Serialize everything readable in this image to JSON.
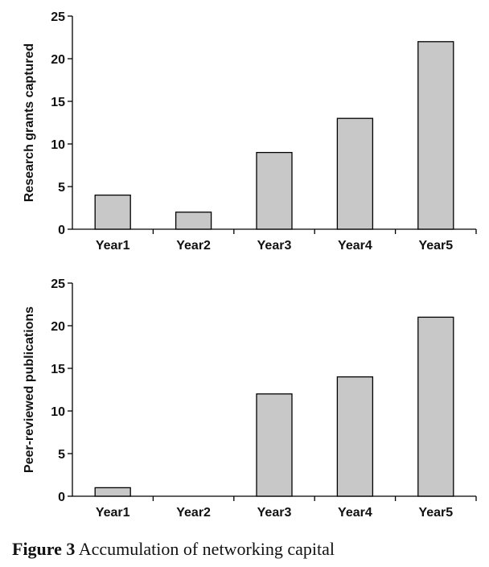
{
  "caption": {
    "label": "Figure 3",
    "text": "Accumulation of networking capital"
  },
  "chart_data": [
    {
      "type": "bar",
      "title": "",
      "xlabel": "",
      "ylabel": "Research grants captured",
      "categories": [
        "Year1",
        "Year2",
        "Year3",
        "Year4",
        "Year5"
      ],
      "values": [
        4,
        2,
        9,
        13,
        22
      ],
      "ylim": [
        0,
        25
      ],
      "yticks": [
        0,
        5,
        10,
        15,
        20,
        25
      ],
      "grid": false,
      "bar_color": "#c8c8c8"
    },
    {
      "type": "bar",
      "title": "",
      "xlabel": "",
      "ylabel": "Peer-reviewed publications",
      "categories": [
        "Year1",
        "Year2",
        "Year3",
        "Year4",
        "Year5"
      ],
      "values": [
        1,
        0,
        12,
        14,
        21
      ],
      "ylim": [
        0,
        25
      ],
      "yticks": [
        0,
        5,
        10,
        15,
        20,
        25
      ],
      "grid": false,
      "bar_color": "#c8c8c8"
    }
  ]
}
